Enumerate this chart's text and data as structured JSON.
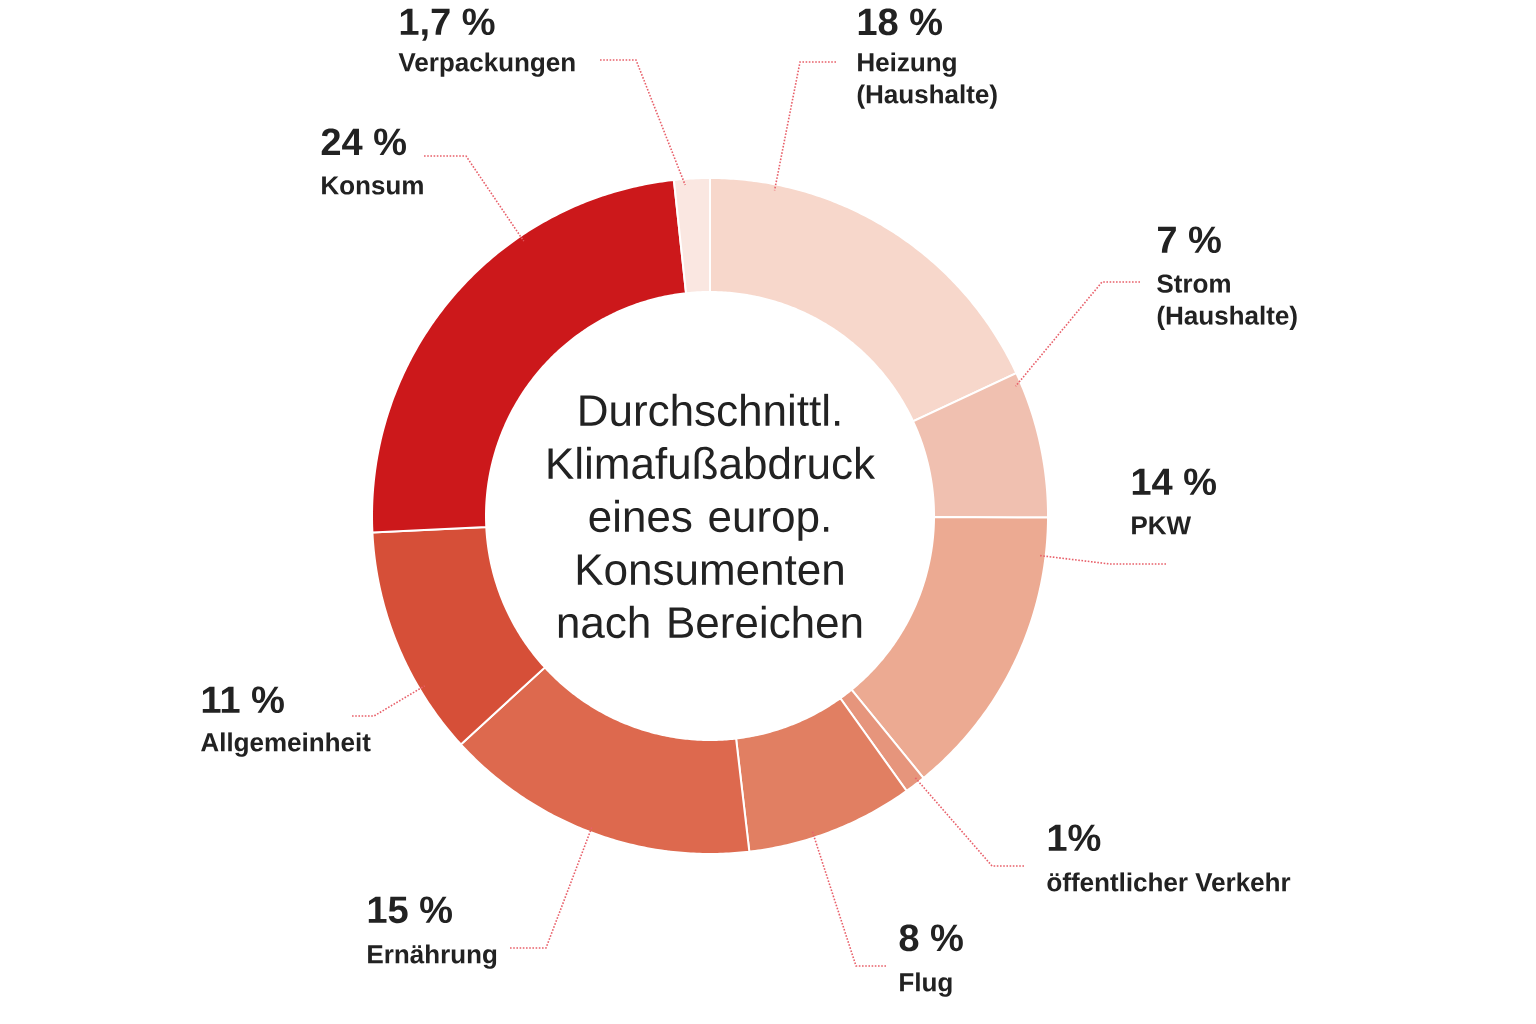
{
  "chart_data": {
    "type": "donut",
    "title": "Durchschnittl. Klimafußabdruck eines europ. Konsumenten nach Bereichen",
    "categories": [
      "Heizung (Haushalte)",
      "Strom (Haushalte)",
      "PKW",
      "öffentlicher Verkehr",
      "Flug",
      "Ernährung",
      "Allgemeinheit",
      "Konsum",
      "Verpackungen"
    ],
    "values": [
      18,
      7,
      14,
      1,
      8,
      15,
      11,
      24,
      1.7
    ],
    "value_labels": [
      "18 %",
      "7 %",
      "14 %",
      "1%",
      "8 %",
      "15 %",
      "11 %",
      "24 %",
      "1,7 %"
    ],
    "colors": [
      "#f7d7cb",
      "#f0c0b0",
      "#ecaa92",
      "#e6957c",
      "#e17f62",
      "#dd694e",
      "#d64f38",
      "#cc181b",
      "#fae7e1"
    ]
  }
}
